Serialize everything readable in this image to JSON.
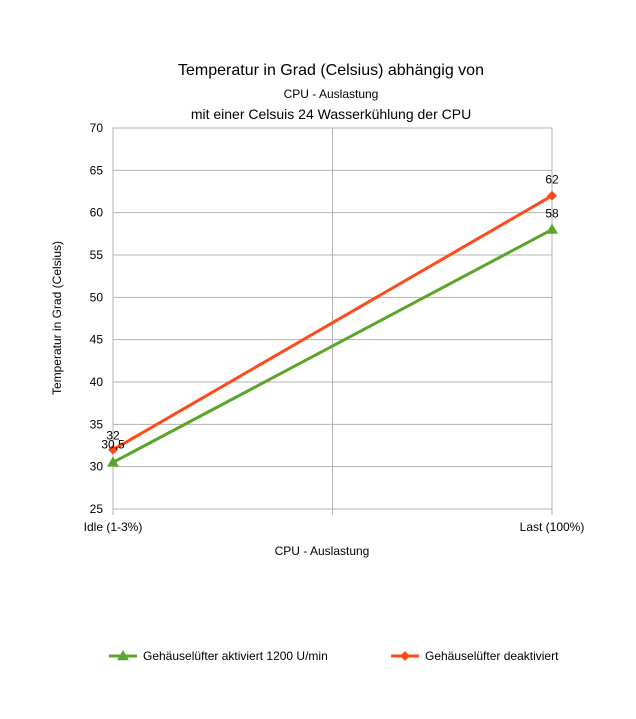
{
  "chart_data": {
    "type": "line",
    "title": "Temperatur in Grad (Celsius) abhängig von",
    "subtitle": "CPU - Auslastung",
    "subtitle2": "mit einer Celsuis 24 Wasserkühlung der CPU",
    "xlabel": "CPU - Auslastung",
    "ylabel": "Temperatur in Grad (Celsius)",
    "categories": [
      "Idle (1-3%)",
      "Last (100%)"
    ],
    "ylim": [
      25,
      70
    ],
    "yticks": [
      25,
      30,
      35,
      40,
      45,
      50,
      55,
      60,
      65,
      70
    ],
    "grid": true,
    "legend_position": "bottom",
    "series": [
      {
        "name": "Gehäuselüfter aktiviert 1200 U/min",
        "values": [
          30.5,
          58
        ],
        "labels": [
          "30,5",
          "58"
        ],
        "color": "#5ba52a",
        "marker": "triangle"
      },
      {
        "name": "Gehäuselüfter deaktiviert",
        "values": [
          32,
          62
        ],
        "labels": [
          "32",
          "62"
        ],
        "color": "#ff4a1a",
        "marker": "diamond"
      }
    ]
  }
}
